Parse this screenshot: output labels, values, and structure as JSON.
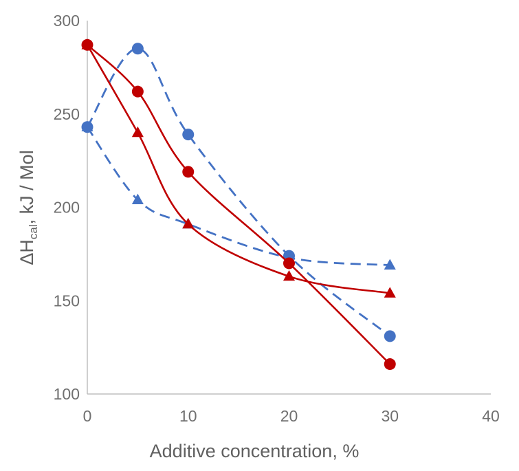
{
  "chart_data": {
    "type": "line",
    "title": "",
    "xlabel": "Additive concentration, %",
    "ylabel": {
      "prefix": "ΔH",
      "subscript": "cal",
      "suffix": ", kJ / Mol"
    },
    "xlim": [
      0,
      40
    ],
    "ylim": [
      100,
      300
    ],
    "xticks": [
      "0",
      "10",
      "20",
      "30",
      "40"
    ],
    "yticks": [
      "100",
      "150",
      "200",
      "250",
      "300"
    ],
    "grid": false,
    "legend": "none",
    "series": [
      {
        "marker": "circle",
        "line": "dashed",
        "color": "#4472c4",
        "x": [
          0,
          5,
          10,
          20,
          30
        ],
        "y": [
          243,
          285,
          239,
          174,
          131
        ]
      },
      {
        "marker": "triangle",
        "line": "dashed",
        "color": "#4472c4",
        "x": [
          0,
          5,
          10,
          20,
          30
        ],
        "y": [
          243,
          204,
          191,
          173,
          169
        ]
      },
      {
        "marker": "circle",
        "line": "solid",
        "color": "#c00000",
        "x": [
          0,
          5,
          10,
          20,
          30
        ],
        "y": [
          287,
          262,
          219,
          170,
          116
        ]
      },
      {
        "marker": "triangle",
        "line": "solid",
        "color": "#c00000",
        "x": [
          0,
          5,
          10,
          20,
          30
        ],
        "y": [
          287,
          240,
          191,
          163,
          154
        ]
      }
    ]
  }
}
